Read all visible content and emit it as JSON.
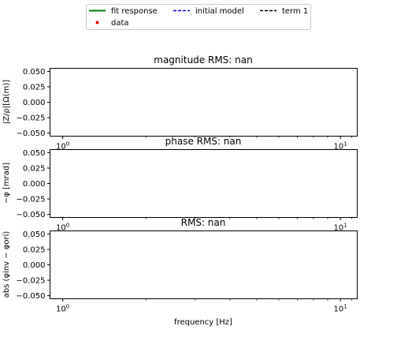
{
  "legend": {
    "items": [
      {
        "label": "fit response",
        "color": "#008000",
        "style": "solid"
      },
      {
        "label": "initial model",
        "color": "#0000cc",
        "style": "dashed"
      },
      {
        "label": "term 1",
        "color": "#000000",
        "style": "dashed"
      },
      {
        "label": "data",
        "color": "#ff0000",
        "style": "marker"
      }
    ]
  },
  "chart_data": [
    {
      "type": "line",
      "title": "magnitude RMS: nan",
      "ylabel": "|Z/ρ|[Ω(m)]",
      "xlabel": "",
      "xscale": "log",
      "xlim": [
        0.9,
        11.5
      ],
      "ylim": [
        -0.055,
        0.055
      ],
      "yticks": [
        "0.050",
        "0.025",
        "0.000",
        "−0.025",
        "−0.050"
      ],
      "ytick_values": [
        0.05,
        0.025,
        0,
        -0.025,
        -0.05
      ],
      "xticks": [
        {
          "base": "10",
          "exp": "0",
          "value": 1
        },
        {
          "base": "10",
          "exp": "1",
          "value": 10
        }
      ],
      "series": []
    },
    {
      "type": "line",
      "title": "phase RMS: nan",
      "ylabel": "−φ [mrad]",
      "xlabel": "",
      "xscale": "log",
      "xlim": [
        0.9,
        11.5
      ],
      "ylim": [
        -0.055,
        0.055
      ],
      "yticks": [
        "0.050",
        "0.025",
        "0.000",
        "−0.025",
        "−0.050"
      ],
      "ytick_values": [
        0.05,
        0.025,
        0,
        -0.025,
        -0.05
      ],
      "xticks": [
        {
          "base": "10",
          "exp": "0",
          "value": 1
        },
        {
          "base": "10",
          "exp": "1",
          "value": 10
        }
      ],
      "series": []
    },
    {
      "type": "line",
      "title": "RMS: nan",
      "ylabel": "abs (φinv − φori)",
      "xlabel": "frequency [Hz]",
      "xscale": "log",
      "xlim": [
        0.9,
        11.5
      ],
      "ylim": [
        -0.055,
        0.055
      ],
      "yticks": [
        "0.050",
        "0.025",
        "0.000",
        "−0.025",
        "−0.050"
      ],
      "ytick_values": [
        0.05,
        0.025,
        0,
        -0.025,
        -0.05
      ],
      "xticks": [
        {
          "base": "10",
          "exp": "0",
          "value": 1
        },
        {
          "base": "10",
          "exp": "1",
          "value": 10
        }
      ],
      "series": []
    }
  ]
}
